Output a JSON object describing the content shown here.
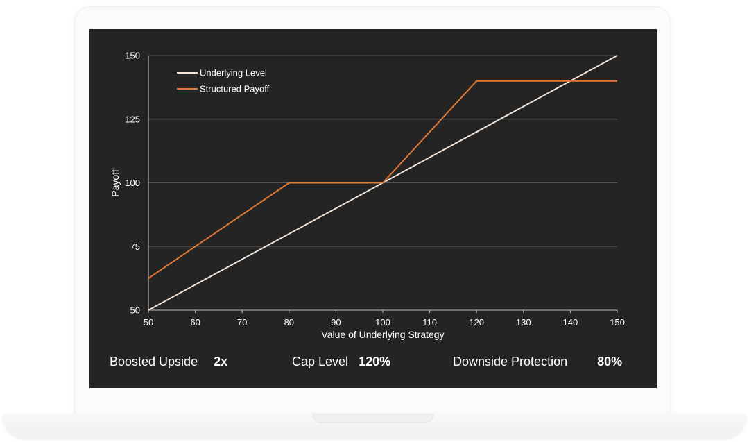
{
  "chart_data": {
    "type": "line",
    "xlabel": "Value of Underlying Strategy",
    "ylabel": "Payoff",
    "xlim": [
      50,
      150
    ],
    "ylim": [
      50,
      150
    ],
    "xticks": [
      50,
      60,
      70,
      80,
      90,
      100,
      110,
      120,
      130,
      140,
      150
    ],
    "yticks": [
      50,
      75,
      100,
      125,
      150
    ],
    "grid": "horizontal",
    "legend_position": "top-left",
    "series": [
      {
        "name": "Underlying Level",
        "color": "#f3e4d8",
        "x": [
          50,
          150
        ],
        "y": [
          50,
          150
        ]
      },
      {
        "name": "Structured Payoff",
        "color": "#e07a35",
        "x": [
          50,
          80,
          100,
          120,
          150
        ],
        "y": [
          62.5,
          100,
          100,
          140,
          140
        ]
      }
    ]
  },
  "footer": {
    "boosted_upside_label": "Boosted Upside",
    "boosted_upside_value": "2x",
    "cap_level_label": "Cap Level",
    "cap_level_value": "120%",
    "downside_protection_label": "Downside Protection",
    "downside_protection_value": "80%"
  },
  "colors": {
    "screen_background": "#242424",
    "grid": "#555555",
    "axis": "#bfbfbf",
    "text": "#ffffff"
  }
}
